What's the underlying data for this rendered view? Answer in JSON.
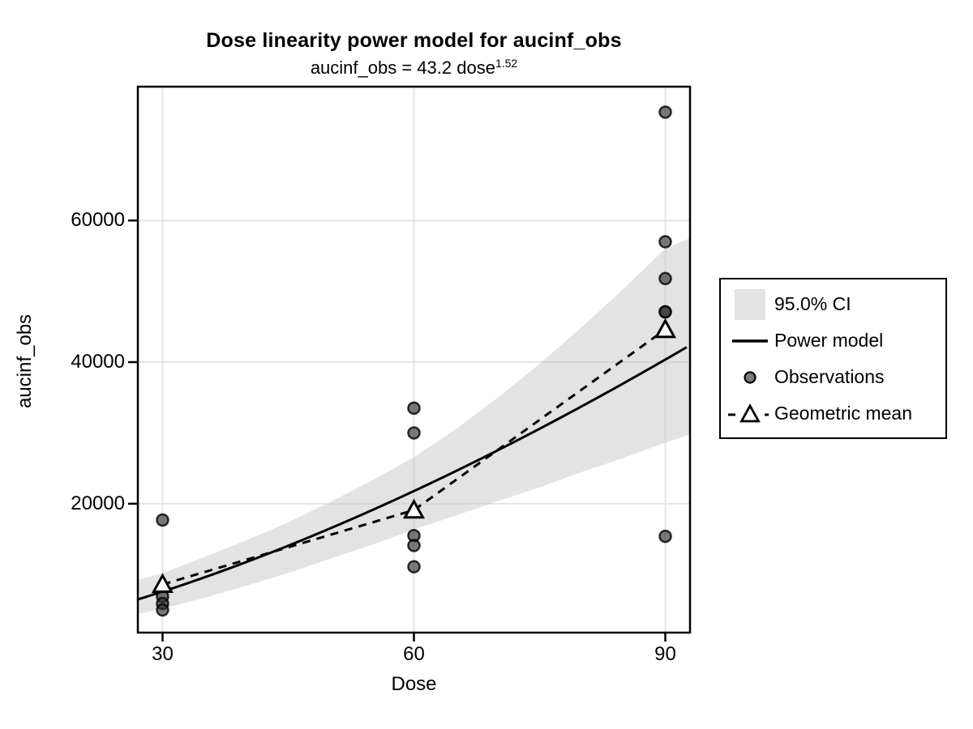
{
  "chart_data": {
    "type": "scatter",
    "title": "Dose linearity power model for aucinf_obs",
    "subtitle": "aucinf_obs = 43.2 dose^1.52",
    "subtitle_base": "aucinf_obs = 43.2 dose",
    "subtitle_exponent": "1.52",
    "xlabel": "Dose",
    "ylabel": "aucinf_obs",
    "x_ticks": [
      30,
      60,
      90
    ],
    "y_ticks": [
      20000,
      40000,
      60000
    ],
    "xlim": [
      27.05,
      92.95
    ],
    "ylim": [
      1800,
      78900
    ],
    "grid": "major-only",
    "legend_position": "right",
    "power_model": {
      "coefficient": 43.2,
      "exponent": 1.52
    },
    "observations": [
      {
        "dose": 30,
        "value": 17700
      },
      {
        "dose": 30,
        "value": 6900
      },
      {
        "dose": 30,
        "value": 5900
      },
      {
        "dose": 30,
        "value": 5000
      },
      {
        "dose": 60,
        "value": 33500
      },
      {
        "dose": 60,
        "value": 30000
      },
      {
        "dose": 60,
        "value": 15500
      },
      {
        "dose": 60,
        "value": 14100
      },
      {
        "dose": 60,
        "value": 11100
      },
      {
        "dose": 90,
        "value": 75300
      },
      {
        "dose": 90,
        "value": 57000
      },
      {
        "dose": 90,
        "value": 51800
      },
      {
        "dose": 90,
        "value": 47100
      },
      {
        "dose": 90,
        "value": 47100
      },
      {
        "dose": 90,
        "value": 15400
      }
    ],
    "geometric_means": [
      {
        "dose": 30,
        "value": 8600
      },
      {
        "dose": 60,
        "value": 19100
      },
      {
        "dose": 90,
        "value": 44600
      }
    ],
    "confidence_band": {
      "level_label": "95.0% CI",
      "points": [
        {
          "dose": 27.05,
          "lower": 4450,
          "upper": 9250
        },
        {
          "dose": 30,
          "lower": 5170,
          "upper": 10180
        },
        {
          "dose": 35,
          "lower": 6720,
          "upper": 12480
        },
        {
          "dose": 40,
          "lower": 8420,
          "upper": 14830
        },
        {
          "dose": 45,
          "lower": 10220,
          "upper": 17360
        },
        {
          "dose": 50,
          "lower": 12220,
          "upper": 20240
        },
        {
          "dose": 55,
          "lower": 14210,
          "upper": 23270
        },
        {
          "dose": 60,
          "lower": 16340,
          "upper": 26570
        },
        {
          "dose": 65,
          "lower": 18330,
          "upper": 30520
        },
        {
          "dose": 70,
          "lower": 20380,
          "upper": 34980
        },
        {
          "dose": 75,
          "lower": 22320,
          "upper": 39750
        },
        {
          "dose": 80,
          "lower": 24480,
          "upper": 44910
        },
        {
          "dose": 85,
          "lower": 26460,
          "upper": 50320
        },
        {
          "dose": 90,
          "lower": 28630,
          "upper": 56060
        },
        {
          "dose": 92.95,
          "lower": 29800,
          "upper": 57500
        }
      ]
    },
    "legend": {
      "items": [
        {
          "key": "ci-band-swatch",
          "label": "95.0% CI"
        },
        {
          "key": "power-model-line",
          "label": "Power model"
        },
        {
          "key": "observation-point",
          "label": "Observations"
        },
        {
          "key": "geometric-mean-marker",
          "label": "Geometric mean"
        }
      ]
    },
    "colors": {
      "band": "#e3e3e3",
      "gridline": "#e4e4e4",
      "line": "#000000",
      "observation_fill": "#7a7a7a",
      "observation_edge": "#000000",
      "triangle_fill": "#ffffff",
      "background": "#ffffff"
    }
  }
}
